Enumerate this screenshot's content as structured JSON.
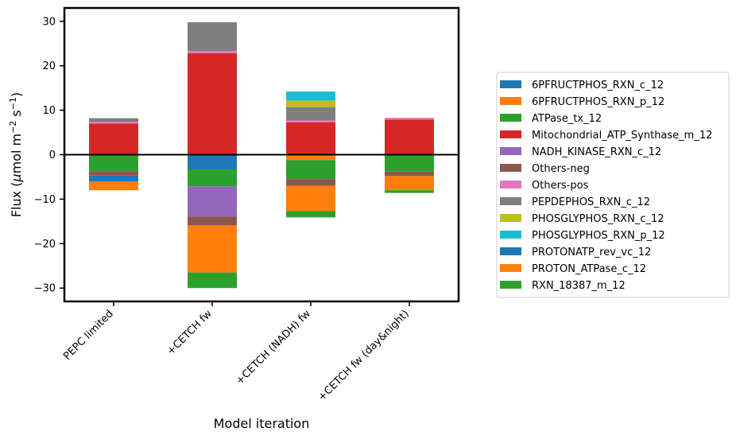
{
  "chart_data": {
    "type": "bar",
    "stacked": true,
    "title": "",
    "xlabel": "Model iteration",
    "ylabel": "Flux (μmol m⁻² s⁻¹)",
    "ylabel_parts": {
      "main": "Flux (",
      "mu": "μ",
      "mol": "mol m",
      "sup1": "−2",
      "s": " s",
      "sup2": "−1",
      "close": ")"
    },
    "ylim": [
      -33,
      33
    ],
    "yticks": [
      -30,
      -20,
      -10,
      0,
      10,
      20,
      30
    ],
    "ytick_labels": [
      "−30",
      "−20",
      "−10",
      "0",
      "10",
      "20",
      "30"
    ],
    "categories": [
      "PEPC limited",
      "+CETCH fw",
      "+CETCH (NADH) fw",
      "+CETCH fw (day&night)"
    ],
    "zero_line": true,
    "legend_position": "right",
    "series": [
      {
        "name": "6PFRUCTPHOS_RXN_c_12",
        "color": "#1f77b4",
        "values": [
          0,
          -3.3,
          0,
          0
        ]
      },
      {
        "name": "6PFRUCTPHOS_RXN_p_12",
        "color": "#ff7f0e",
        "values": [
          0,
          0,
          -1.2,
          0
        ]
      },
      {
        "name": "ATPase_tx_12",
        "color": "#2ca02c",
        "values": [
          -3.7,
          -3.8,
          -4.3,
          -3.8
        ]
      },
      {
        "name": "Mitochondrial_ATP_Synthase_m_12",
        "color": "#d62728",
        "values": [
          7.0,
          22.8,
          7.3,
          7.9
        ]
      },
      {
        "name": "NADH_KINASE_RXN_c_12",
        "color": "#9467bd",
        "values": [
          0,
          -6.8,
          0,
          0
        ]
      },
      {
        "name": "Others-neg",
        "color": "#8c564b",
        "values": [
          -1.0,
          -2.0,
          -1.5,
          -1.0
        ]
      },
      {
        "name": "Others-pos",
        "color": "#e377c2",
        "values": [
          0.4,
          0.5,
          0.4,
          0.4
        ]
      },
      {
        "name": "PEPDEPHOS_RXN_c_12",
        "color": "#7f7f7f",
        "values": [
          0.8,
          6.5,
          3.0,
          0
        ]
      },
      {
        "name": "PHOSGLYPHOS_RXN_c_12",
        "color": "#bcbd22",
        "values": [
          0,
          0,
          1.5,
          0
        ]
      },
      {
        "name": "PHOSGLYPHOS_RXN_p_12",
        "color": "#17becf",
        "values": [
          0,
          0,
          2.0,
          0
        ]
      },
      {
        "name": "PROTONATP_rev_vc_12",
        "color": "#1f77b4",
        "values": [
          -1.3,
          0,
          0,
          0
        ]
      },
      {
        "name": "PROTON_ATPase_c_12",
        "color": "#ff7f0e",
        "values": [
          -2.0,
          -10.6,
          -5.7,
          -3.2
        ]
      },
      {
        "name": "RXN_18387_m_12",
        "color": "#2ca02c",
        "values": [
          0,
          -3.5,
          -1.4,
          -0.6
        ]
      }
    ]
  }
}
